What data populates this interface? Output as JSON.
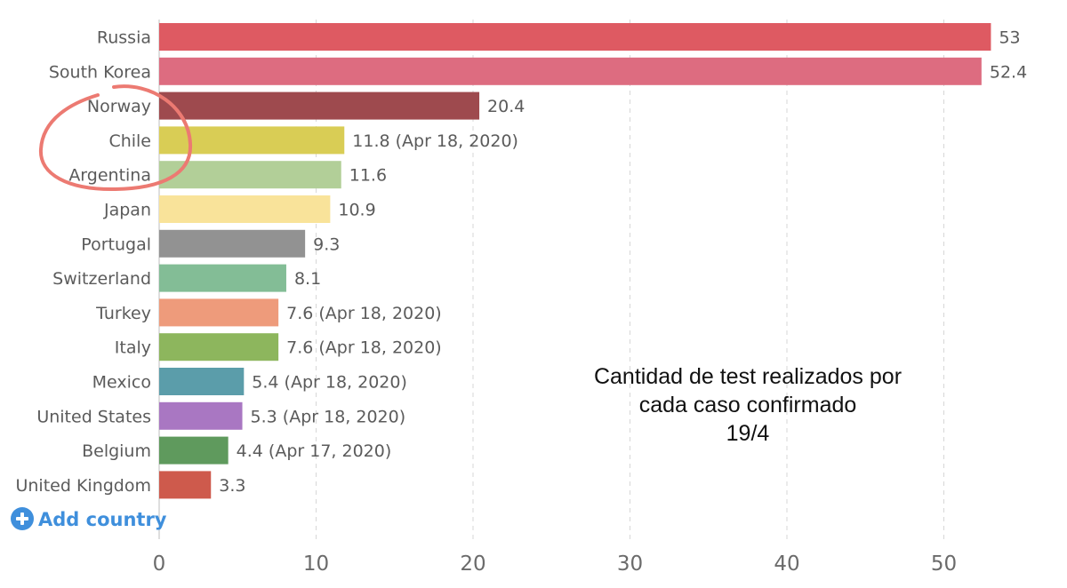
{
  "chart_data": {
    "type": "bar",
    "orientation": "horizontal",
    "categories": [
      "Russia",
      "South Korea",
      "Norway",
      "Chile",
      "Argentina",
      "Japan",
      "Portugal",
      "Switzerland",
      "Turkey",
      "Italy",
      "Mexico",
      "United States",
      "Belgium",
      "United Kingdom"
    ],
    "values": [
      53,
      52.4,
      20.4,
      11.8,
      11.6,
      10.9,
      9.3,
      8.1,
      7.6,
      7.6,
      5.4,
      5.3,
      4.4,
      3.3
    ],
    "value_labels": [
      "53",
      "52.4",
      "20.4",
      "11.8 (Apr 18, 2020)",
      "11.6",
      "10.9",
      "9.3",
      "8.1",
      "7.6 (Apr 18, 2020)",
      "7.6 (Apr 18, 2020)",
      "5.4 (Apr 18, 2020)",
      "5.3 (Apr 18, 2020)",
      "4.4 (Apr 17, 2020)",
      "3.3"
    ],
    "colors": [
      "#de5a62",
      "#dd6c80",
      "#9e4a4e",
      "#d9cd55",
      "#b2cf98",
      "#f9e39a",
      "#929292",
      "#83bd96",
      "#ee9b7b",
      "#8db65d",
      "#5b9daa",
      "#a977c2",
      "#5f9a5d",
      "#ce5a4c"
    ],
    "xlim": [
      0,
      55
    ],
    "xticks": [
      0,
      10,
      20,
      30,
      40,
      50
    ],
    "grid": true,
    "annotation": [
      "Cantidad de test realizados por",
      "cada caso confirmado",
      "19/4"
    ],
    "highlight": {
      "type": "hand-drawn-circle",
      "color": "#ec7a72",
      "around": [
        "Chile",
        "Argentina"
      ]
    }
  },
  "controls": {
    "add_country": "Add country",
    "add_icon": "plus-circle-icon"
  }
}
